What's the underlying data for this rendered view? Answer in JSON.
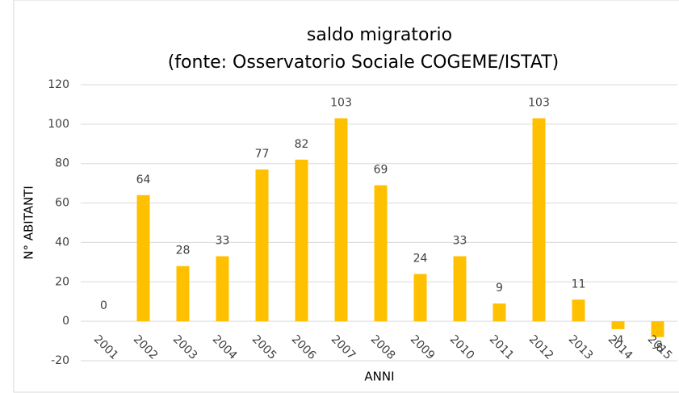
{
  "chart_data": {
    "type": "bar",
    "title": "saldo migratorio",
    "subtitle": "(fonte: Osservatorio Sociale COGEME/ISTAT)",
    "x_label": "ANNI",
    "y_label": "N° ABITANTI",
    "categories": [
      "2001",
      "2002",
      "2003",
      "2004",
      "2005",
      "2006",
      "2007",
      "2008",
      "2009",
      "2010",
      "2011",
      "2012",
      "2013",
      "2014",
      "2015"
    ],
    "values": [
      0,
      64,
      28,
      33,
      77,
      82,
      103,
      69,
      24,
      33,
      9,
      103,
      11,
      -4,
      -8
    ],
    "color": "#ffc000",
    "ylim": [
      -20,
      120
    ],
    "yticks": [
      -20,
      0,
      20,
      40,
      60,
      80,
      100,
      120
    ],
    "grid": true
  }
}
